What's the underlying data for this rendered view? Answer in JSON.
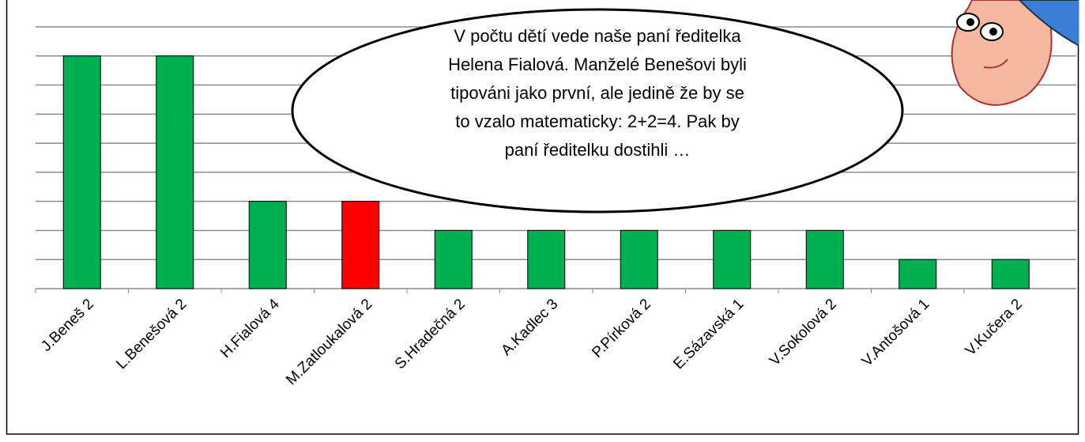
{
  "chart_data": {
    "type": "bar",
    "categories": [
      "J.Beneš 2",
      "L.Benešová 2",
      "H.Fialová 4",
      "M.Zatloukalová 2",
      "S.Hradečná 2",
      "A.Kadlec 3",
      "P.Pírková 2",
      "E.Sázavská 1",
      "V.Sokolová 2",
      "V.Antošová 1",
      "V.Kučera 2"
    ],
    "values": [
      8,
      8,
      3,
      3,
      2,
      2,
      2,
      2,
      2,
      1,
      1
    ],
    "colors": [
      "#00b050",
      "#00b050",
      "#00b050",
      "#ff0000",
      "#00b050",
      "#00b050",
      "#00b050",
      "#00b050",
      "#00b050",
      "#00b050",
      "#00b050"
    ],
    "ylim": [
      0,
      9
    ],
    "yticks": [
      1,
      2,
      3,
      4,
      5,
      6,
      7,
      8,
      9
    ],
    "grid": true,
    "annotation": [
      "V počtu dětí vede naše paní ředitelka",
      "Helena Fialová. Manželé Benešovi byli",
      "tipováni jako první, ale jedině že by se",
      "to vzalo matematicky: 2+2=4. Pak by",
      "paní ředitelku dostihli …"
    ]
  }
}
